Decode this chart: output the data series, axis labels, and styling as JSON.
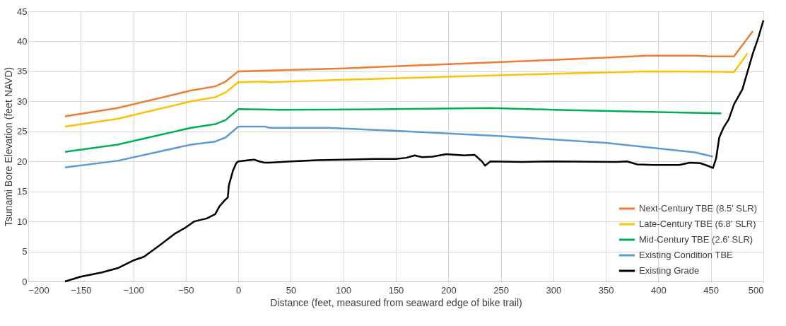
{
  "chart_data": {
    "type": "line",
    "xlabel": "Distance (feet, measured from seaward edge of bike trail)",
    "ylabel": "Tsunami Bore Elevation (feet NAVD)",
    "xlim": [
      -200,
      500
    ],
    "xticks": [
      -200,
      -150,
      -100,
      -50,
      0,
      50,
      100,
      150,
      200,
      250,
      300,
      350,
      400,
      450,
      500
    ],
    "ylim": [
      0,
      45
    ],
    "yticks": [
      0,
      5,
      10,
      15,
      20,
      25,
      30,
      35,
      40,
      45
    ],
    "grid": true,
    "legend": "bottom right",
    "marker": "none",
    "line_style": "solid",
    "series": [
      {
        "name": "Next-Century TBE (8.5' SLR)",
        "color": "#ed7d31",
        "x": [
          -165,
          -115,
          -45,
          -22,
          -12,
          0,
          100,
          200,
          300,
          390,
          435,
          450,
          472,
          490
        ],
        "values": [
          27.5,
          28.9,
          31.8,
          32.5,
          33.3,
          35,
          35.5,
          36.2,
          36.9,
          37.6,
          37.6,
          37.5,
          37.5,
          41.7
        ]
      },
      {
        "name": "Late-Century TBE (6.8' SLR)",
        "color": "#ffc000",
        "x": [
          -165,
          -115,
          -45,
          -22,
          -12,
          0,
          25,
          30,
          100,
          200,
          300,
          390,
          472,
          485
        ],
        "values": [
          25.8,
          27.1,
          30,
          30.7,
          31.5,
          33.2,
          33.3,
          33.2,
          33.6,
          34.1,
          34.6,
          35,
          34.9,
          38
        ]
      },
      {
        "name": "Mid-Century TBE (2.6' SLR)",
        "color": "#00b050",
        "x": [
          -165,
          -115,
          -45,
          -22,
          -12,
          0,
          40,
          150,
          240,
          300,
          400,
          460
        ],
        "values": [
          21.6,
          22.8,
          25.6,
          26.2,
          26.9,
          28.7,
          28.6,
          28.7,
          28.9,
          28.6,
          28.2,
          28
        ]
      },
      {
        "name": "Existing Condition TBE",
        "color": "#5b9bd5",
        "x": [
          -165,
          -115,
          -45,
          -22,
          -12,
          0,
          25,
          30,
          85,
          150,
          250,
          350,
          435,
          452
        ],
        "values": [
          19,
          20.1,
          22.8,
          23.3,
          24,
          25.8,
          25.8,
          25.6,
          25.6,
          25.1,
          24.2,
          23.1,
          21.5,
          20.8
        ]
      },
      {
        "name": "Existing Grade",
        "color": "#000000",
        "x": [
          -165,
          -150,
          -130,
          -115,
          -100,
          -90,
          -75,
          -60,
          -50,
          -42,
          -30,
          -22,
          -18,
          -13,
          -10,
          -9,
          -5,
          -2,
          0,
          10,
          15,
          20,
          25,
          30,
          50,
          75,
          100,
          130,
          150,
          160,
          168,
          175,
          185,
          198,
          215,
          225,
          232,
          235,
          240,
          270,
          300,
          360,
          370,
          380,
          395,
          420,
          430,
          440,
          448,
          452,
          455,
          458,
          462,
          467,
          472,
          480,
          485,
          490,
          495,
          500
        ],
        "values": [
          0,
          0.8,
          1.5,
          2.2,
          3.5,
          4.1,
          6,
          8,
          9,
          10,
          10.5,
          11.2,
          12.5,
          13.5,
          14,
          16,
          18.5,
          19.7,
          20,
          20.2,
          20.3,
          20,
          19.8,
          19.8,
          20,
          20.2,
          20.3,
          20.4,
          20.4,
          20.6,
          21,
          20.7,
          20.8,
          21.2,
          21,
          21.1,
          20,
          19.3,
          20,
          19.9,
          20,
          19.9,
          20,
          19.5,
          19.4,
          19.4,
          19.8,
          19.7,
          19.2,
          18.9,
          20.5,
          24,
          25.6,
          27,
          29.5,
          32,
          35,
          38,
          40.5,
          43.5
        ]
      }
    ]
  }
}
